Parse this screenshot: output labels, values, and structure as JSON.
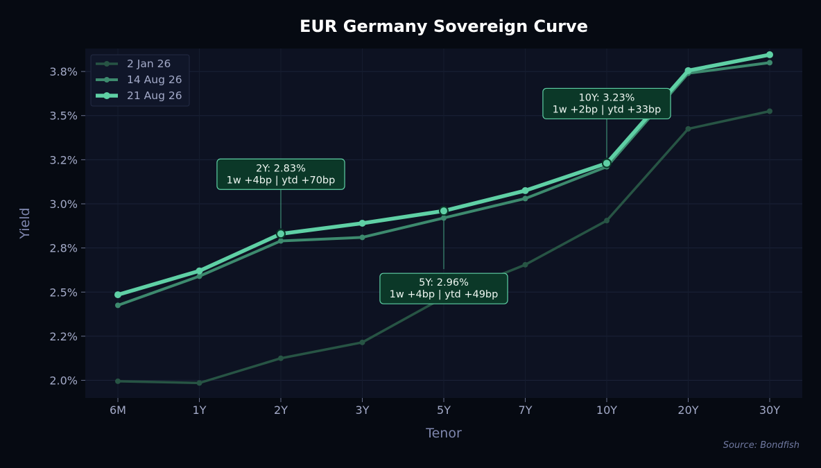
{
  "chart_data": {
    "type": "line",
    "title": "EUR Germany Sovereign Curve",
    "xlabel": "Tenor",
    "ylabel": "Yield",
    "categories": [
      "6M",
      "1Y",
      "2Y",
      "3Y",
      "5Y",
      "7Y",
      "10Y",
      "20Y",
      "30Y"
    ],
    "ylim": [
      1.9,
      3.88
    ],
    "yticks": [
      2.0,
      2.25,
      2.5,
      2.75,
      3.0,
      3.25,
      3.5,
      3.75
    ],
    "ytick_labels": [
      "2.0%",
      "2.2%",
      "2.5%",
      "2.8%",
      "3.0%",
      "3.2%",
      "3.5%",
      "3.8%"
    ],
    "grid": true,
    "legend_position": "top-left",
    "series": [
      {
        "name": "2 Jan 26",
        "color": "#275444",
        "values": [
          1.995,
          1.985,
          2.125,
          2.215,
          2.47,
          2.655,
          2.905,
          3.425,
          3.525
        ]
      },
      {
        "name": "14 Aug 26",
        "color": "#3d8a6e",
        "values": [
          2.425,
          2.59,
          2.79,
          2.81,
          2.92,
          3.03,
          3.21,
          3.74,
          3.8
        ]
      },
      {
        "name": "21 Aug 26",
        "color": "#5fd0a5",
        "values": [
          2.485,
          2.62,
          2.83,
          2.89,
          2.96,
          3.075,
          3.23,
          3.755,
          3.845
        ]
      }
    ],
    "annotations": [
      {
        "tenor": "2Y",
        "line1": "2Y: 2.83%",
        "line2": "1w +4bp | ytd +70bp",
        "placement": "above"
      },
      {
        "tenor": "5Y",
        "line1": "5Y: 2.96%",
        "line2": "1w +4bp | ytd +49bp",
        "placement": "below"
      },
      {
        "tenor": "10Y",
        "line1": "10Y: 3.23%",
        "line2": "1w +2bp | ytd +33bp",
        "placement": "above"
      }
    ],
    "source": "Source: Bondfish"
  }
}
